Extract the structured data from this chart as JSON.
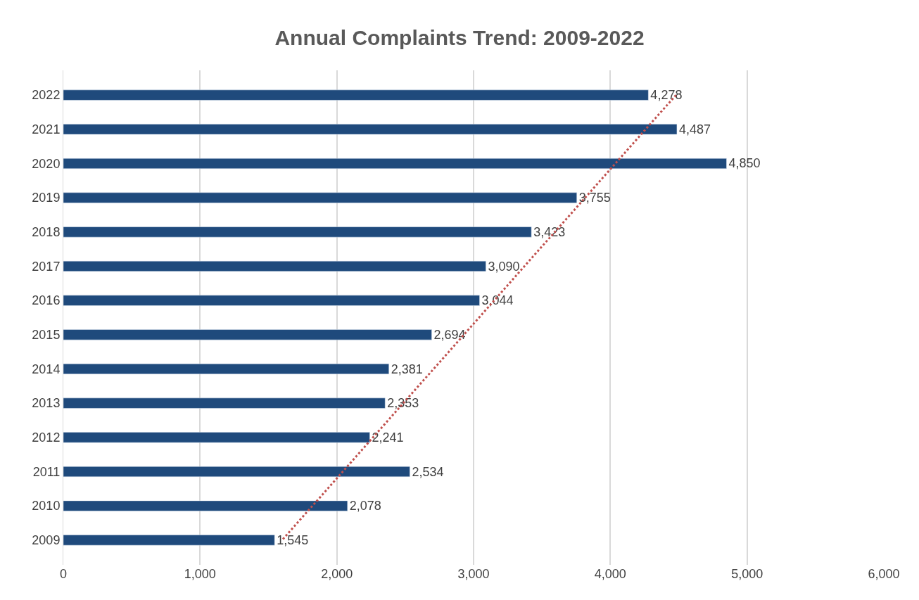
{
  "chart_data": {
    "type": "bar",
    "orientation": "horizontal",
    "title": "Annual Complaints Trend: 2009-2022",
    "categories": [
      "2022",
      "2021",
      "2020",
      "2019",
      "2018",
      "2017",
      "2016",
      "2015",
      "2014",
      "2013",
      "2012",
      "2011",
      "2010",
      "2009"
    ],
    "series": [
      {
        "color": "#1f4a7c",
        "values": [
          4278,
          4487,
          4850,
          3755,
          3423,
          3090,
          3044,
          2694,
          2381,
          2353,
          2241,
          2534,
          2078,
          1545
        ],
        "value_labels": [
          "4,278",
          "4,487",
          "4,850",
          "3,755",
          "3,423",
          "3,090",
          "3,044",
          "2,694",
          "2,381",
          "2,353",
          "2,241",
          "2,534",
          "2,078",
          "1,545"
        ]
      },
      {
        "type": "line",
        "color": "#c0504d",
        "line_style": "dotted",
        "values": [
          4480,
          null,
          null,
          null,
          null,
          null,
          null,
          null,
          null,
          null,
          null,
          null,
          null,
          1600
        ]
      }
    ],
    "xlim": [
      0,
      6000
    ],
    "xticks": [
      {
        "value": 0,
        "label": "0"
      },
      {
        "value": 1000,
        "label": "1,000"
      },
      {
        "value": 2000,
        "label": "2,000"
      },
      {
        "value": 3000,
        "label": "3,000"
      },
      {
        "value": 4000,
        "label": "4,000"
      },
      {
        "value": 5000,
        "label": "5,000"
      },
      {
        "value": 6000,
        "label": "6,000"
      }
    ],
    "grid": "x"
  }
}
